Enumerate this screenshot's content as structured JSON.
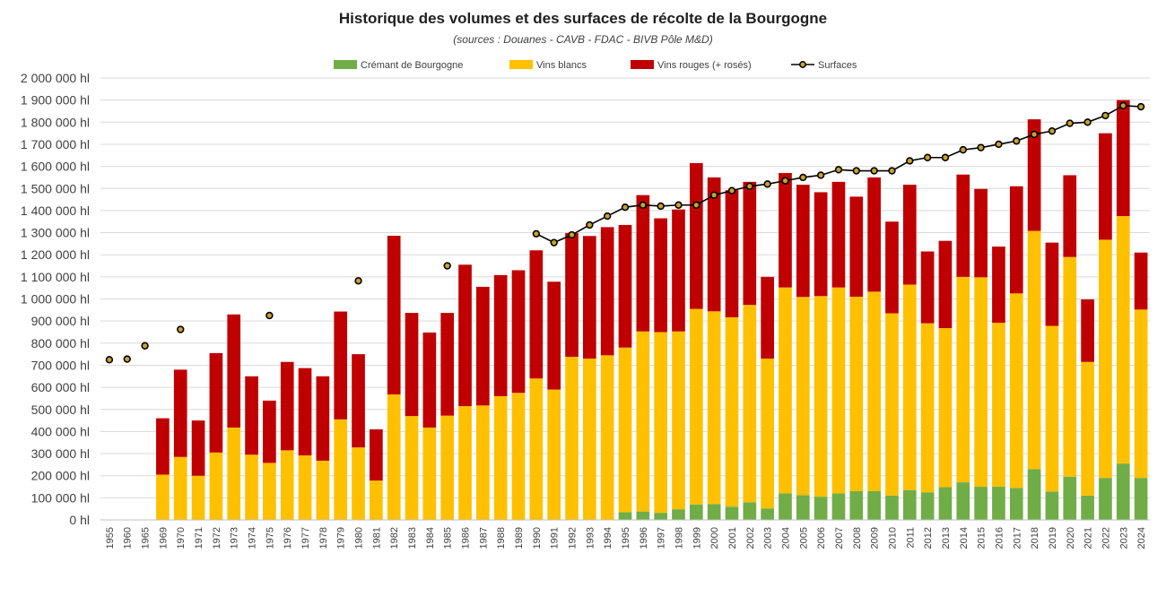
{
  "chart_data": {
    "type": "bar",
    "title": "Historique des volumes et des surfaces de récolte de la Bourgogne",
    "subtitle": "(sources : Douanes - CAVB - FDAC - BIVB Pôle M&D)",
    "stacked": true,
    "ylim": [
      0,
      2000000
    ],
    "y_tick_step": 100000,
    "y_unit": "hl",
    "grid": true,
    "legend_position": "top",
    "categories": [
      "1955",
      "1960",
      "1965",
      "1969",
      "1970",
      "1971",
      "1972",
      "1973",
      "1974",
      "1975",
      "1976",
      "1977",
      "1978",
      "1979",
      "1980",
      "1981",
      "1982",
      "1983",
      "1984",
      "1985",
      "1986",
      "1987",
      "1988",
      "1989",
      "1990",
      "1991",
      "1992",
      "1993",
      "1994",
      "1995",
      "1996",
      "1997",
      "1998",
      "1999",
      "2000",
      "2001",
      "2002",
      "2003",
      "2004",
      "2005",
      "2006",
      "2007",
      "2008",
      "2009",
      "2010",
      "2011",
      "2012",
      "2013",
      "2014",
      "2015",
      "2016",
      "2017",
      "2018",
      "2019",
      "2020",
      "2021",
      "2022",
      "2023",
      "2024"
    ],
    "series": [
      {
        "name": "Crémant de Bourgogne",
        "color": "#70ad47",
        "values": [
          0,
          0,
          0,
          0,
          0,
          0,
          0,
          0,
          0,
          0,
          0,
          0,
          0,
          0,
          0,
          0,
          0,
          0,
          0,
          0,
          0,
          0,
          0,
          0,
          0,
          0,
          0,
          0,
          0,
          35000,
          38000,
          32000,
          48000,
          70000,
          72000,
          60000,
          80000,
          52000,
          120000,
          112000,
          105000,
          120000,
          130000,
          130000,
          110000,
          135000,
          125000,
          148000,
          170000,
          150000,
          150000,
          145000,
          230000,
          128000,
          195000,
          110000,
          190000,
          255000,
          190000
        ]
      },
      {
        "name": "Vins blancs",
        "color": "#ffc000",
        "values": [
          0,
          0,
          0,
          205000,
          285000,
          200000,
          305000,
          418000,
          295000,
          258000,
          315000,
          292000,
          268000,
          455000,
          328000,
          178000,
          568000,
          470000,
          418000,
          472000,
          515000,
          518000,
          560000,
          575000,
          640000,
          590000,
          738000,
          730000,
          745000,
          745000,
          815000,
          818000,
          805000,
          885000,
          872000,
          857000,
          893000,
          678000,
          932000,
          897000,
          908000,
          932000,
          880000,
          903000,
          825000,
          930000,
          765000,
          720000,
          930000,
          948000,
          742000,
          880000,
          1078000,
          750000,
          995000,
          605000,
          1078000,
          1120000,
          762000
        ]
      },
      {
        "name": "Vins rouges (+ rosés)",
        "color": "#c00000",
        "values": [
          0,
          0,
          0,
          255000,
          395000,
          250000,
          450000,
          512000,
          355000,
          282000,
          400000,
          395000,
          382000,
          488000,
          422000,
          232000,
          718000,
          467000,
          430000,
          465000,
          640000,
          537000,
          548000,
          555000,
          580000,
          488000,
          560000,
          555000,
          580000,
          555000,
          617000,
          515000,
          552000,
          660000,
          606000,
          575000,
          557000,
          370000,
          518000,
          508000,
          470000,
          478000,
          453000,
          517000,
          415000,
          452000,
          325000,
          395000,
          463000,
          400000,
          345000,
          485000,
          505000,
          377000,
          370000,
          283000,
          482000,
          525000,
          258000
        ]
      }
    ],
    "line_series": {
      "name": "Surfaces",
      "color": "#000000",
      "marker_color": "#c9a227",
      "values": [
        725000,
        728000,
        788000,
        null,
        862000,
        null,
        null,
        null,
        null,
        925000,
        null,
        null,
        null,
        null,
        1082000,
        null,
        null,
        null,
        null,
        1150000,
        null,
        null,
        null,
        null,
        1295000,
        1255000,
        1290000,
        1335000,
        1375000,
        1415000,
        1425000,
        1420000,
        1425000,
        1425000,
        1470000,
        1490000,
        1510000,
        1520000,
        1535000,
        1550000,
        1560000,
        1585000,
        1580000,
        1580000,
        1580000,
        1625000,
        1640000,
        1640000,
        1675000,
        1685000,
        1700000,
        1715000,
        1745000,
        1760000,
        1795000,
        1800000,
        1830000,
        1875000,
        1870000
      ],
      "connect_from_index": 24
    }
  }
}
